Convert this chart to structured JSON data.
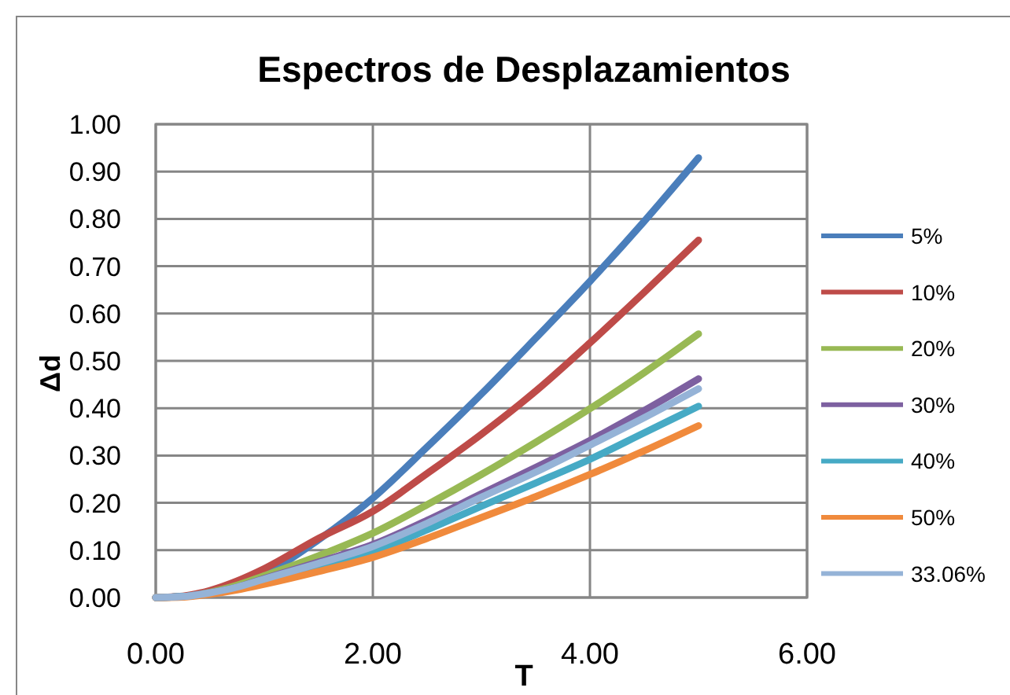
{
  "chart_data": {
    "type": "line",
    "title": "Espectros de Desplazamientos",
    "xlabel": "T",
    "ylabel": "Δd",
    "x": [
      0,
      0.25,
      0.5,
      0.75,
      1,
      1.5,
      2,
      2.5,
      3,
      3.5,
      4,
      4.5,
      5
    ],
    "series": [
      {
        "name": "5%",
        "color": "#4a7ebb",
        "values": [
          0,
          0.002,
          0.012,
          0.028,
          0.05,
          0.122,
          0.21,
          0.318,
          0.43,
          0.548,
          0.668,
          0.795,
          0.929
        ]
      },
      {
        "name": "10%",
        "color": "#be4b48",
        "values": [
          0,
          0.003,
          0.015,
          0.035,
          0.061,
          0.125,
          0.182,
          0.262,
          0.345,
          0.436,
          0.538,
          0.645,
          0.755
        ]
      },
      {
        "name": "20%",
        "color": "#98b954",
        "values": [
          0,
          0.002,
          0.011,
          0.026,
          0.046,
          0.088,
          0.136,
          0.196,
          0.26,
          0.328,
          0.399,
          0.475,
          0.557
        ]
      },
      {
        "name": "30%",
        "color": "#7d60a0",
        "values": [
          0,
          0.002,
          0.01,
          0.022,
          0.04,
          0.075,
          0.112,
          0.163,
          0.219,
          0.275,
          0.332,
          0.395,
          0.462
        ]
      },
      {
        "name": "40%",
        "color": "#46aac5",
        "values": [
          0,
          0.002,
          0.009,
          0.02,
          0.035,
          0.065,
          0.097,
          0.143,
          0.193,
          0.242,
          0.292,
          0.348,
          0.404
        ]
      },
      {
        "name": "50%",
        "color": "#f08a3c",
        "values": [
          0,
          0.001,
          0.007,
          0.016,
          0.028,
          0.055,
          0.085,
          0.125,
          0.169,
          0.213,
          0.26,
          0.31,
          0.363
        ]
      },
      {
        "name": "33.06%",
        "color": "#95b3d7",
        "values": [
          0,
          0.002,
          0.01,
          0.022,
          0.039,
          0.072,
          0.108,
          0.157,
          0.212,
          0.265,
          0.322,
          0.38,
          0.441
        ]
      }
    ],
    "xlim": [
      0,
      6
    ],
    "xticks": [
      {
        "value": 0,
        "label": "0.00"
      },
      {
        "value": 2,
        "label": "2.00"
      },
      {
        "value": 4,
        "label": "4.00"
      },
      {
        "value": 6,
        "label": "6.00"
      }
    ],
    "ylim": [
      0,
      1
    ],
    "yticks": [
      {
        "value": 0,
        "label": "0.00"
      },
      {
        "value": 0.1,
        "label": "0.10"
      },
      {
        "value": 0.2,
        "label": "0.20"
      },
      {
        "value": 0.3,
        "label": "0.30"
      },
      {
        "value": 0.4,
        "label": "0.40"
      },
      {
        "value": 0.5,
        "label": "0.50"
      },
      {
        "value": 0.6,
        "label": "0.60"
      },
      {
        "value": 0.7,
        "label": "0.70"
      },
      {
        "value": 0.8,
        "label": "0.80"
      },
      {
        "value": 0.9,
        "label": "0.90"
      },
      {
        "value": 1,
        "label": "1.00"
      }
    ],
    "grid": true,
    "legend": "right",
    "marker": "none",
    "line_style": "solid"
  }
}
